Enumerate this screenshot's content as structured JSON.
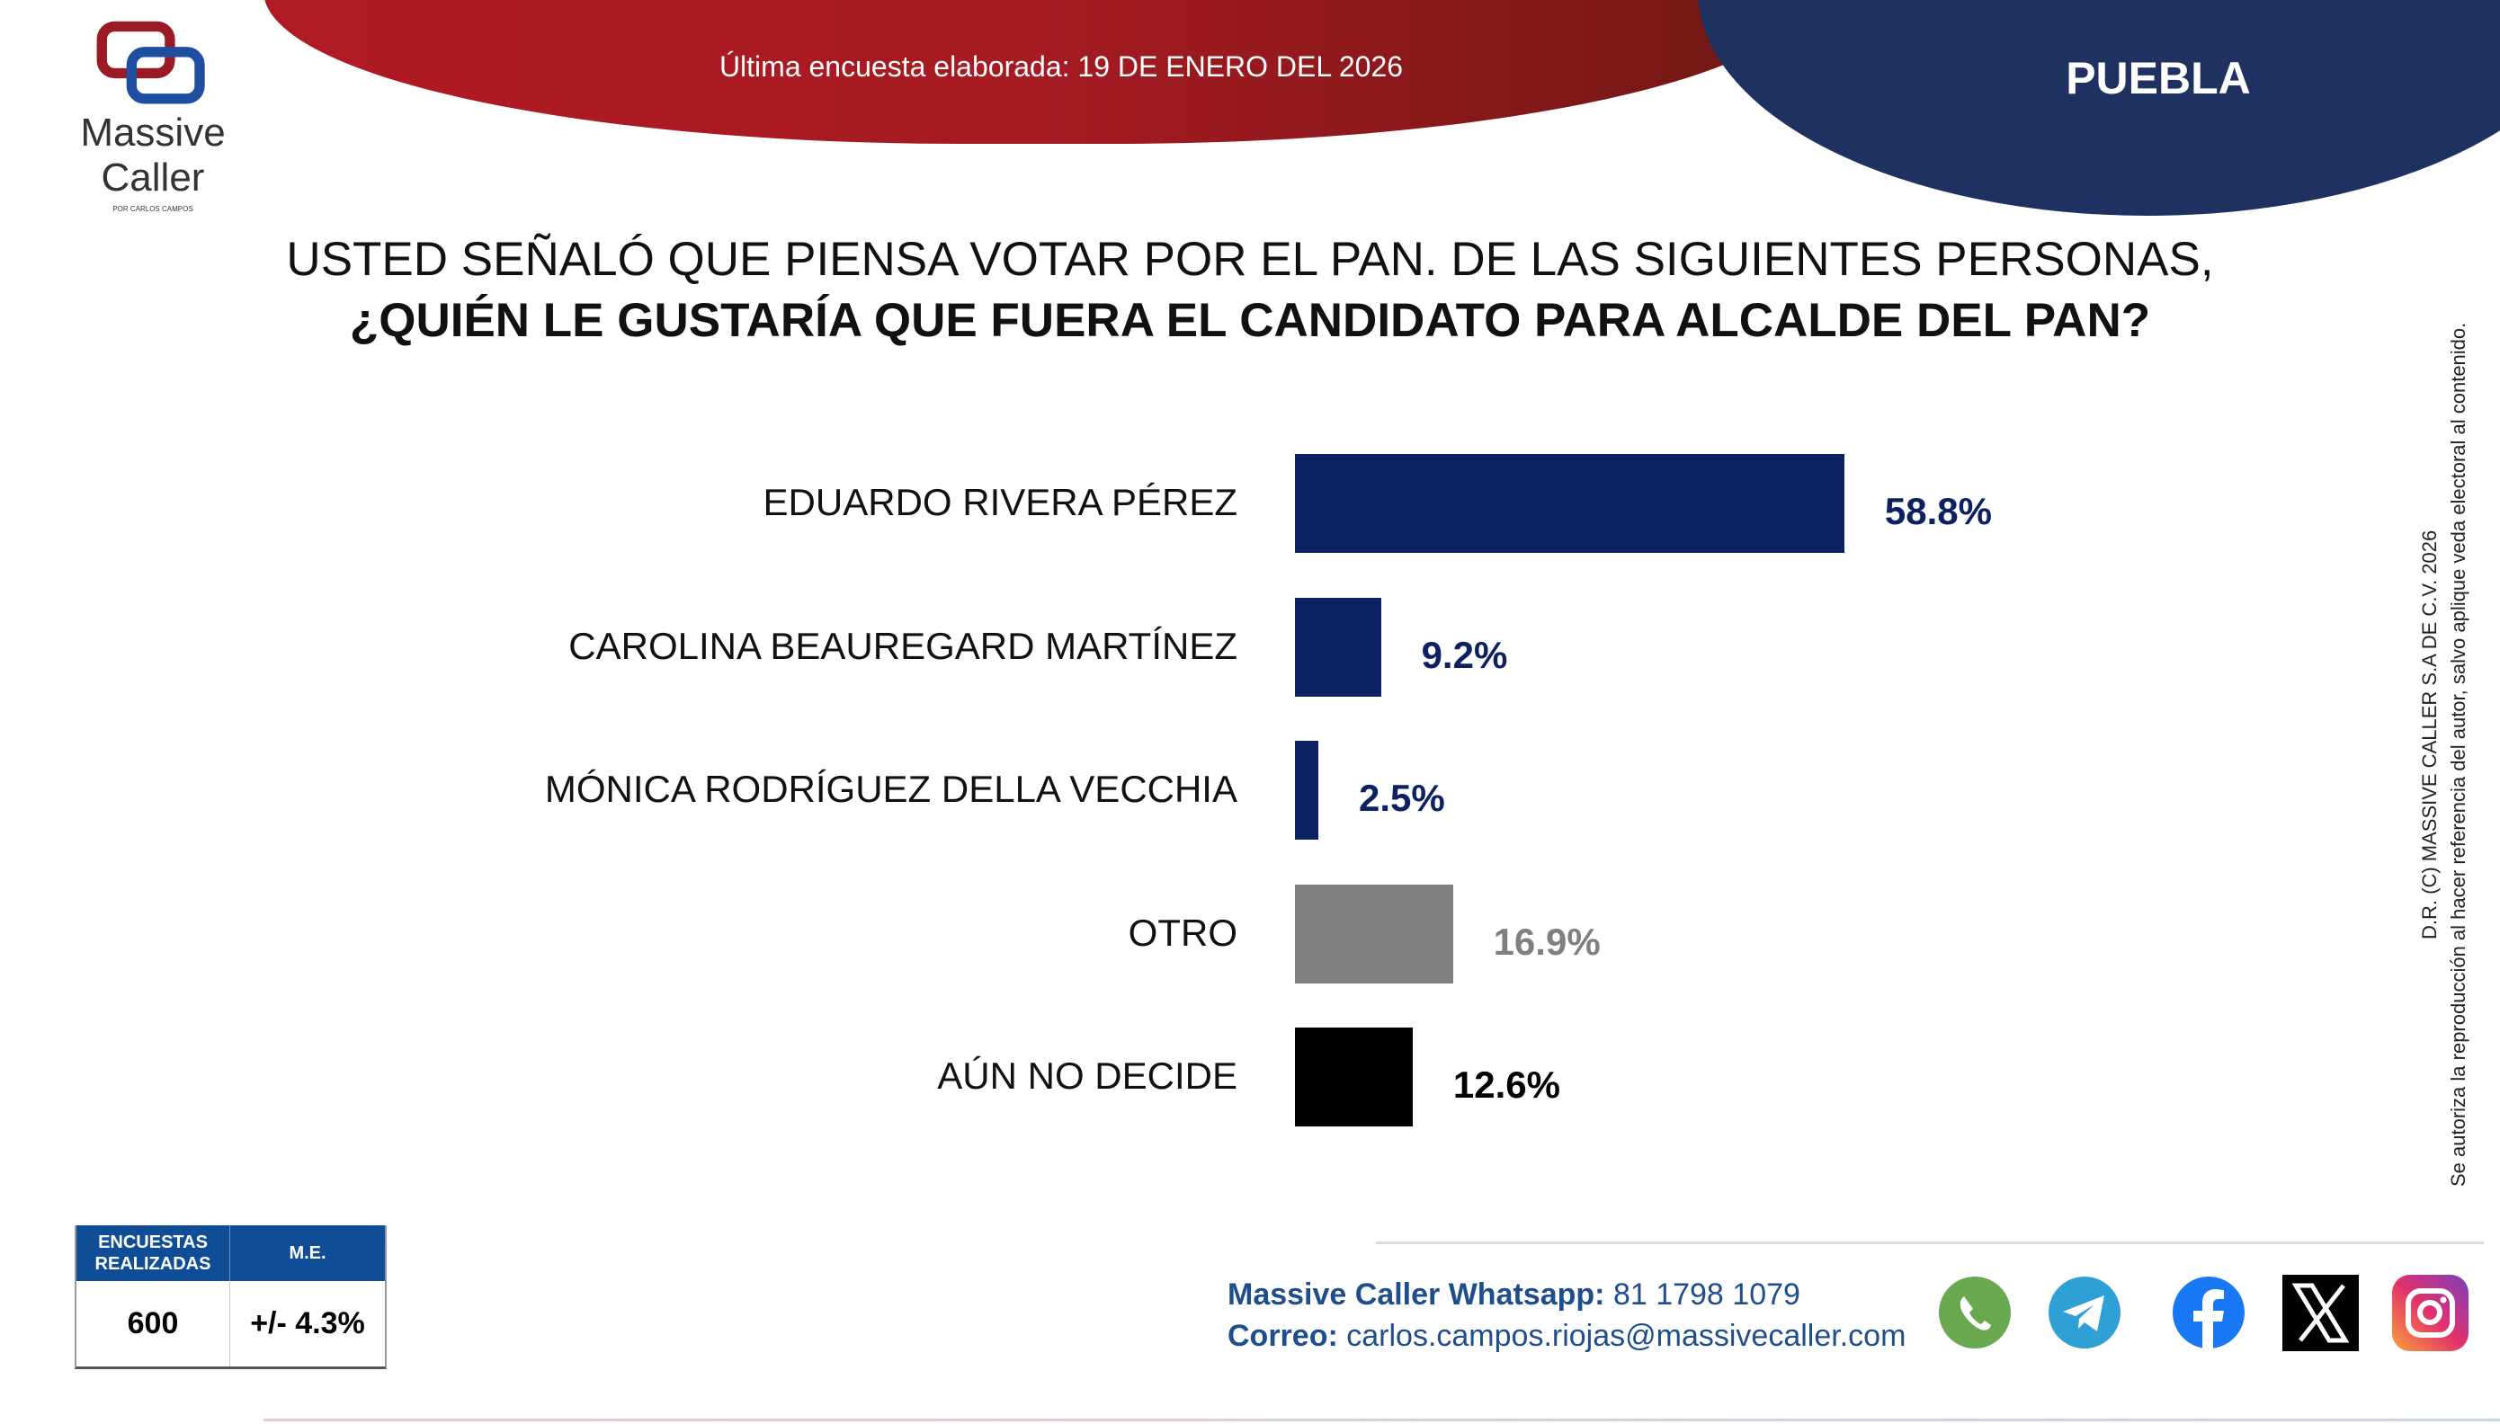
{
  "header": {
    "date_text": "Última encuesta elaborada: 19 DE ENERO DEL 2026",
    "region": "PUEBLA",
    "logo_text_1": "Massive",
    "logo_text_2": "Caller",
    "logo_subtext": "POR CARLOS CAMPOS"
  },
  "chart_data": {
    "type": "bar",
    "orientation": "horizontal",
    "title_line1": "USTED SEÑALÓ QUE PIENSA VOTAR POR EL PAN. DE LAS SIGUIENTES PERSONAS,",
    "title_line2": "¿QUIÉN LE GUSTARÍA QUE FUERA EL CANDIDATO PARA ALCALDE DEL PAN?",
    "categories": [
      "EDUARDO RIVERA PÉREZ",
      "CAROLINA BEAUREGARD MARTÍNEZ",
      "MÓNICA RODRÍGUEZ DELLA VECCHIA",
      "OTRO",
      "AÚN NO DECIDE"
    ],
    "values": [
      58.8,
      9.2,
      2.5,
      16.9,
      12.6
    ],
    "value_labels": [
      "58.8%",
      "9.2%",
      "2.5%",
      "16.9%",
      "12.6%"
    ],
    "colors": [
      "#0b2161",
      "#0b2161",
      "#0b2161",
      "#808080",
      "#000000"
    ],
    "label_colors": [
      "#0b2161",
      "#0b2161",
      "#0b2161",
      "#808080",
      "#000000"
    ],
    "xlim": [
      0,
      100
    ],
    "grid": false
  },
  "stats": {
    "col1_header": "ENCUESTAS REALIZADAS",
    "col2_header": "M.E.",
    "col1_value": "600",
    "col2_value": "+/- 4.3%"
  },
  "contact": {
    "whatsapp_label": "Massive Caller Whatsapp:",
    "whatsapp_number": "81 1798 1079",
    "email_label": "Correo:",
    "email": "carlos.campos.riojas@massivecaller.com"
  },
  "social_icons": [
    "whatsapp-icon",
    "telegram-icon",
    "facebook-icon",
    "x-icon",
    "instagram-icon"
  ],
  "legal": {
    "line1": "D.R. (C) MASSIVE CALLER S.A DE C.V. 2026",
    "line2": "Se autoriza la reproducción al hacer referencia del autor, salvo aplique veda electoral al contenido."
  }
}
